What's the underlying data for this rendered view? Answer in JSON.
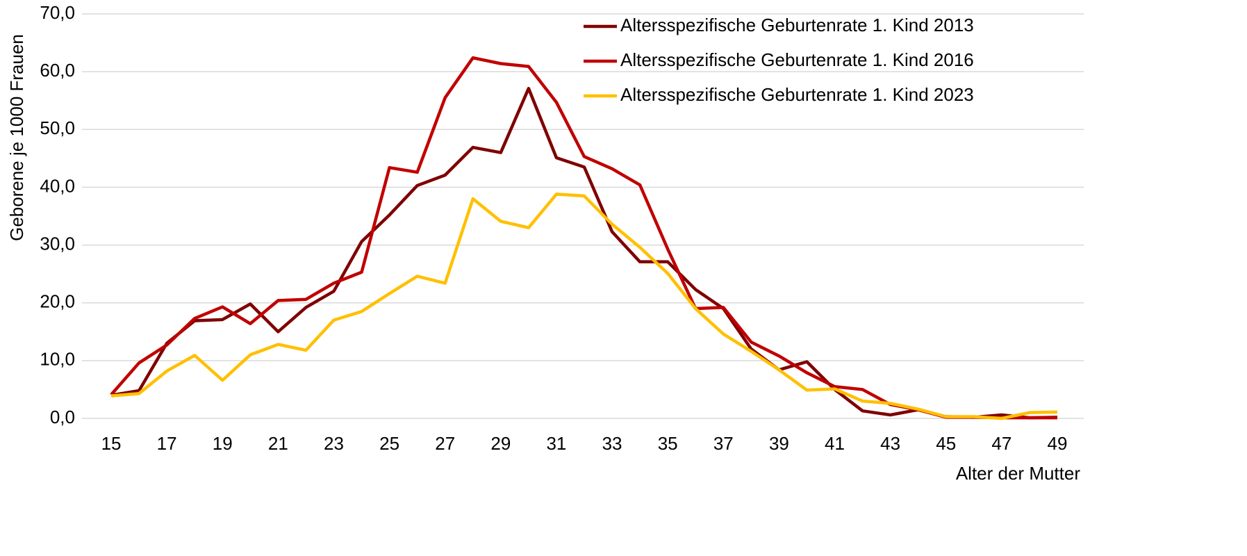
{
  "chart_data": {
    "type": "line",
    "y_label": "Geborene je 1000 Frauen",
    "x_label": "Alter der Mutter",
    "x": [
      15,
      16,
      17,
      18,
      19,
      20,
      21,
      22,
      23,
      24,
      25,
      26,
      27,
      28,
      29,
      30,
      31,
      32,
      33,
      34,
      35,
      36,
      37,
      38,
      39,
      40,
      41,
      42,
      43,
      44,
      45,
      46,
      47,
      48,
      49
    ],
    "xlim": [
      14.5,
      49.5
    ],
    "xticks": [
      15,
      17,
      19,
      21,
      23,
      25,
      27,
      29,
      31,
      33,
      35,
      37,
      39,
      41,
      43,
      45,
      47,
      49
    ],
    "ylim": [
      0,
      70
    ],
    "yticks": [
      {
        "value": 0,
        "label": "0,0"
      },
      {
        "value": 10,
        "label": "10,0"
      },
      {
        "value": 20,
        "label": "20,0"
      },
      {
        "value": 30,
        "label": "30,0"
      },
      {
        "value": 40,
        "label": "40,0"
      },
      {
        "value": 50,
        "label": "50,0"
      },
      {
        "value": 60,
        "label": "60,0"
      },
      {
        "value": 70,
        "label": "70,0"
      }
    ],
    "grid": true,
    "legend": "top-right",
    "series": [
      {
        "name": "Altersspezifische Geburtenrate 1. Kind 2013",
        "color": "#7f0000",
        "values": [
          4.0,
          4.8,
          13.0,
          16.9,
          17.1,
          19.8,
          15.0,
          19.2,
          22.0,
          30.6,
          35.2,
          40.3,
          42.1,
          46.9,
          46.0,
          57.1,
          45.1,
          43.5,
          32.3,
          27.1,
          27.1,
          22.3,
          19.0,
          12.0,
          8.4,
          9.8,
          5.0,
          1.3,
          0.6,
          1.5,
          0.3,
          0.2,
          0.6,
          0.1,
          0.2
        ]
      },
      {
        "name": "Altersspezifische Geburtenrate 1. Kind 2016",
        "color": "#c00000",
        "values": [
          4.1,
          9.6,
          12.7,
          17.3,
          19.3,
          16.4,
          20.4,
          20.6,
          23.4,
          25.3,
          43.4,
          42.6,
          55.5,
          62.4,
          61.4,
          60.9,
          54.7,
          45.3,
          43.2,
          40.4,
          29.3,
          19.0,
          19.2,
          13.2,
          10.8,
          7.9,
          5.5,
          5.0,
          2.4,
          1.5,
          0.2,
          0.2,
          0.1,
          0.1,
          0.1
        ]
      },
      {
        "name": "Altersspezifische Geburtenrate 1. Kind 2023",
        "color": "#ffc000",
        "values": [
          3.9,
          4.3,
          8.2,
          10.9,
          6.6,
          11.0,
          12.8,
          11.8,
          17.0,
          18.5,
          21.6,
          24.6,
          23.4,
          38.0,
          34.1,
          33.0,
          38.8,
          38.5,
          33.6,
          29.6,
          25.1,
          19.0,
          14.6,
          11.6,
          8.4,
          4.9,
          5.1,
          3.0,
          2.6,
          1.6,
          0.3,
          0.3,
          0.0,
          1.0,
          1.1
        ]
      }
    ]
  }
}
